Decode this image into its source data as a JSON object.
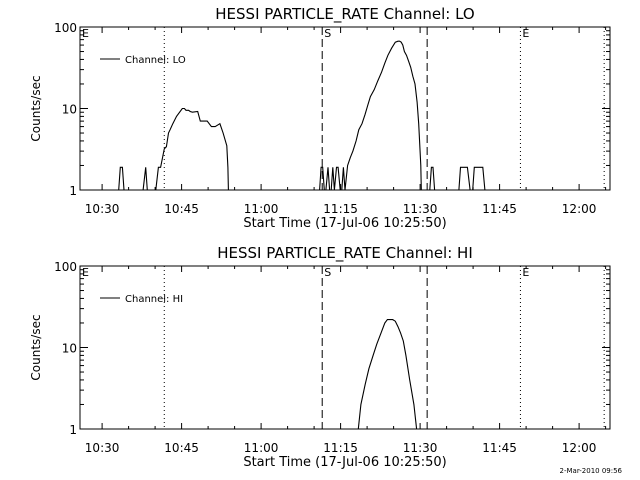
{
  "stamp": "2-Mar-2010 09:56",
  "chart_data": [
    {
      "type": "line",
      "title": "HESSI PARTICLE_RATE Channel: LO",
      "xlabel": "Start Time (17-Jul-06 10:25:50)",
      "ylabel": "Counts/sec",
      "yscale": "log",
      "ylim": [
        1,
        100
      ],
      "xlim_minutes": [
        0,
        100
      ],
      "xticks": [
        {
          "label": "10:30",
          "t": 4.17
        },
        {
          "label": "10:45",
          "t": 19.17
        },
        {
          "label": "11:00",
          "t": 34.17
        },
        {
          "label": "11:15",
          "t": 49.17
        },
        {
          "label": "11:30",
          "t": 64.17
        },
        {
          "label": "11:45",
          "t": 79.17
        },
        {
          "label": "12:00",
          "t": 94.17
        }
      ],
      "yticks": [
        {
          "label": "1",
          "v": 1
        },
        {
          "label": "10",
          "v": 10
        },
        {
          "label": "100",
          "v": 100
        }
      ],
      "legend": {
        "label": "Channel: LO",
        "position": "top-left"
      },
      "markers": [
        {
          "label": "E",
          "t": 0,
          "style": "none"
        },
        {
          "label": "",
          "t": 15.9,
          "style": "dotted"
        },
        {
          "label": "S",
          "t": 45.7,
          "style": "dashed"
        },
        {
          "label": "",
          "t": 65.5,
          "style": "dashed"
        },
        {
          "label": "E",
          "t": 83.1,
          "style": "dotted"
        },
        {
          "label": "",
          "t": 98.9,
          "style": "dotted"
        }
      ],
      "series": [
        {
          "name": "Channel: LO",
          "x": [
            6.8,
            7.3,
            7.6,
            8.0,
            8.3,
            11.9,
            12.4,
            12.7,
            14.3,
            14.8,
            15.2,
            15.9,
            16.3,
            16.7,
            17.0,
            17.5,
            18.2,
            19.3,
            19.7,
            20.0,
            20.5,
            20.8,
            21.2,
            22.2,
            22.7,
            23.4,
            24.0,
            24.8,
            25.5,
            26.4,
            27.0,
            27.7,
            27.9,
            28.0,
            45.2,
            45.5,
            45.8,
            46.1,
            46.4,
            46.8,
            47.1,
            47.4,
            47.7,
            48.0,
            48.4,
            48.7,
            49.1,
            49.4,
            49.7,
            50.0,
            50.5,
            51.0,
            51.5,
            52.1,
            52.6,
            53.2,
            53.8,
            54.3,
            54.8,
            55.5,
            56.2,
            56.9,
            57.5,
            58.1,
            58.8,
            59.5,
            60.0,
            60.3,
            60.6,
            60.9,
            61.2,
            61.6,
            62.0,
            62.4,
            62.8,
            63.2,
            63.6,
            63.9,
            64.3,
            64.4,
            66.0,
            66.3,
            66.6,
            66.9,
            71.5,
            71.8,
            72.1,
            72.6,
            73.1,
            73.6,
            74.1,
            74.4,
            74.7,
            75.0,
            75.5,
            76.0,
            76.4
          ],
          "y": [
            1,
            1,
            1.9,
            1.9,
            1,
            1,
            1.9,
            1,
            1,
            1.9,
            1.9,
            3.2,
            3.4,
            5.0,
            5.5,
            6.5,
            8.0,
            10,
            10,
            9.5,
            9.5,
            9.2,
            9.0,
            9.2,
            7.0,
            7.0,
            7.0,
            6.0,
            6.0,
            6.5,
            5.0,
            3.5,
            1.9,
            1,
            1,
            1.9,
            1.9,
            1,
            1,
            1.9,
            1,
            1,
            1.9,
            1,
            1.9,
            1.9,
            1,
            1,
            1.9,
            1,
            2.0,
            2.5,
            3.0,
            4.0,
            5.5,
            6.5,
            8.5,
            11,
            14,
            17,
            22,
            28,
            36,
            45,
            55,
            65,
            67,
            67,
            65,
            60,
            50,
            45,
            38,
            32,
            25,
            20,
            12,
            6.5,
            2.0,
            1,
            1,
            1.9,
            1.9,
            1,
            1,
            1.9,
            1.9,
            1.9,
            1.9,
            1,
            1,
            1.9,
            1.9,
            1.9,
            1.9,
            1.9,
            1
          ]
        }
      ]
    },
    {
      "type": "line",
      "title": "HESSI PARTICLE_RATE Channel: HI",
      "xlabel": "Start Time (17-Jul-06 10:25:50)",
      "ylabel": "Counts/sec",
      "yscale": "log",
      "ylim": [
        1,
        100
      ],
      "xlim_minutes": [
        0,
        100
      ],
      "xticks": [
        {
          "label": "10:30",
          "t": 4.17
        },
        {
          "label": "10:45",
          "t": 19.17
        },
        {
          "label": "11:00",
          "t": 34.17
        },
        {
          "label": "11:15",
          "t": 49.17
        },
        {
          "label": "11:30",
          "t": 64.17
        },
        {
          "label": "11:45",
          "t": 79.17
        },
        {
          "label": "12:00",
          "t": 94.17
        }
      ],
      "yticks": [
        {
          "label": "1",
          "v": 1
        },
        {
          "label": "10",
          "v": 10
        },
        {
          "label": "100",
          "v": 100
        }
      ],
      "legend": {
        "label": "Channel: HI",
        "position": "top-left"
      },
      "markers": [
        {
          "label": "E",
          "t": 0,
          "style": "none"
        },
        {
          "label": "",
          "t": 15.9,
          "style": "dotted"
        },
        {
          "label": "S",
          "t": 45.7,
          "style": "dashed"
        },
        {
          "label": "",
          "t": 65.5,
          "style": "dashed"
        },
        {
          "label": "E",
          "t": 83.1,
          "style": "dotted"
        },
        {
          "label": "",
          "t": 98.9,
          "style": "dotted"
        }
      ],
      "series": [
        {
          "name": "Channel: HI",
          "x": [
            52.5,
            53.0,
            53.8,
            54.5,
            55.3,
            56.0,
            56.8,
            57.5,
            58.0,
            58.5,
            59.0,
            59.5,
            60.0,
            60.5,
            61.0,
            61.5,
            62.2,
            63.0,
            63.5
          ],
          "y": [
            1,
            2.0,
            3.5,
            5.5,
            8.0,
            11,
            15,
            20,
            22,
            22,
            22,
            21,
            18,
            15,
            12,
            8,
            4,
            2,
            1
          ]
        }
      ]
    }
  ]
}
